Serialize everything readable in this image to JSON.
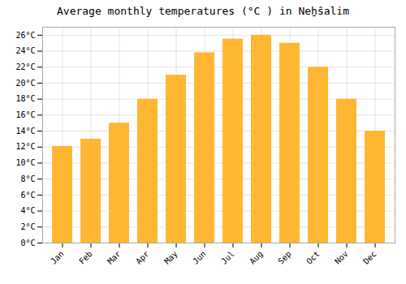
{
  "chart_data": {
    "type": "bar",
    "title": "Average monthly temperatures (°C ) in Neẖŝalim",
    "categories": [
      "Jan",
      "Feb",
      "Mar",
      "Apr",
      "May",
      "Jun",
      "Jul",
      "Aug",
      "Sep",
      "Oct",
      "Nov",
      "Dec"
    ],
    "values": [
      12.1,
      13.0,
      15.0,
      18.0,
      21.0,
      23.8,
      25.5,
      26.0,
      25.0,
      22.0,
      18.0,
      14.0
    ],
    "color": "#FFB733",
    "ylim": [
      0,
      27
    ],
    "yticks": [
      {
        "value": 0,
        "label": "0°C"
      },
      {
        "value": 2,
        "label": "2°C"
      },
      {
        "value": 4,
        "label": "4°C"
      },
      {
        "value": 6,
        "label": "6°C"
      },
      {
        "value": 8,
        "label": "8°C"
      },
      {
        "value": 10,
        "label": "10°C"
      },
      {
        "value": 12,
        "label": "12°C"
      },
      {
        "value": 14,
        "label": "14°C"
      },
      {
        "value": 16,
        "label": "16°C"
      },
      {
        "value": 18,
        "label": "18°C"
      },
      {
        "value": 20,
        "label": "20°C"
      },
      {
        "value": 22,
        "label": "22°C"
      },
      {
        "value": 24,
        "label": "24°C"
      },
      {
        "value": 26,
        "label": "26°C"
      }
    ],
    "grid": true
  }
}
